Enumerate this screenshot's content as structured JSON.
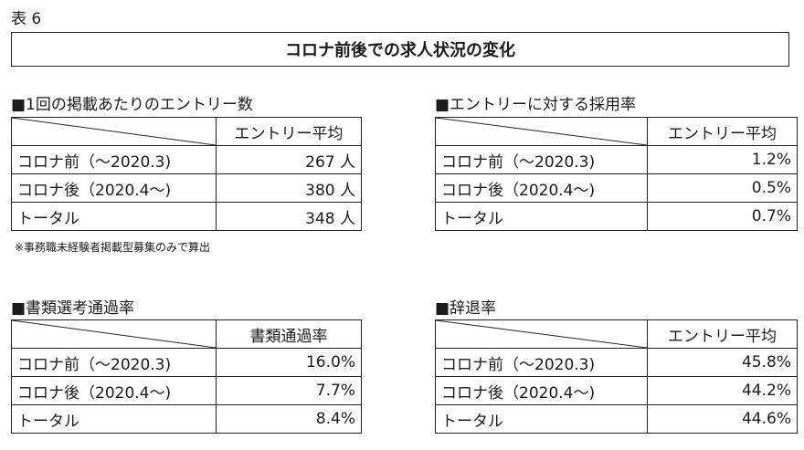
{
  "table_label": "表 6",
  "title": "コロナ前後での求人状況の変化",
  "tables": {
    "entries": {
      "heading": "■1回の掲載あたりのエントリー数",
      "column_header": "エントリー平均",
      "rows": [
        {
          "label": "コロナ前（～2020.3)",
          "value": "267 人"
        },
        {
          "label": "コロナ後（2020.4～)",
          "value": "380 人"
        },
        {
          "label": "トータル",
          "value": "348 人"
        }
      ]
    },
    "hire_rate": {
      "heading": "■エントリーに対する採用率",
      "column_header": "エントリー平均",
      "rows": [
        {
          "label": "コロナ前（～2020.3)",
          "value": "1.2%"
        },
        {
          "label": "コロナ後（2020.4～)",
          "value": "0.5%"
        },
        {
          "label": "トータル",
          "value": "0.7%"
        }
      ]
    },
    "screening": {
      "heading": "■書類選考通過率",
      "column_header": "書類通過率",
      "rows": [
        {
          "label": "コロナ前（～2020.3)",
          "value": "16.0%"
        },
        {
          "label": "コロナ後（2020.4～)",
          "value": "7.7%"
        },
        {
          "label": "トータル",
          "value": "8.4%"
        }
      ]
    },
    "declines": {
      "heading": "■辞退率",
      "column_header": "エントリー平均",
      "rows": [
        {
          "label": "コロナ前（～2020.3)",
          "value": "45.8%"
        },
        {
          "label": "コロナ後（2020.4～)",
          "value": "44.2%"
        },
        {
          "label": "トータル",
          "value": "44.6%"
        }
      ]
    }
  },
  "note": "※事務職未経験者掲載型募集のみで算出"
}
